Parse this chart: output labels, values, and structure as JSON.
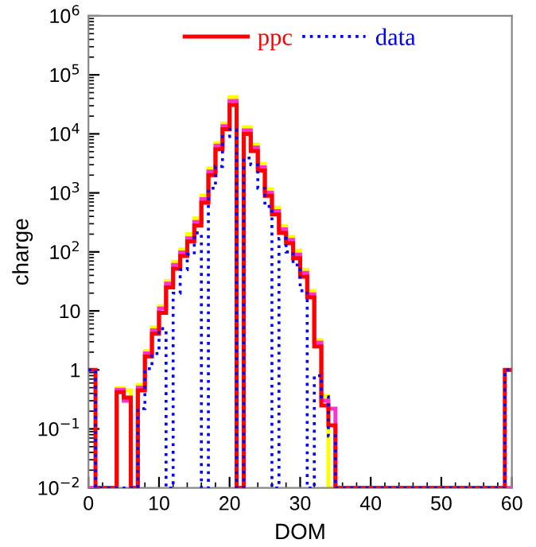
{
  "chart_data": {
    "type": "histogram",
    "xlabel": "DOM",
    "ylabel": "charge",
    "log": "y",
    "grid": false,
    "legend": "top",
    "bins": [
      0,
      1,
      2,
      3,
      4,
      5,
      6,
      7,
      8,
      9,
      10,
      11,
      12,
      13,
      14,
      15,
      16,
      17,
      18,
      19,
      20,
      21,
      22,
      23,
      24,
      25,
      26,
      27,
      28,
      29,
      30,
      31,
      32,
      33,
      34,
      35,
      36,
      37,
      38,
      39,
      40,
      41,
      42,
      43,
      44,
      45,
      46,
      47,
      48,
      49,
      50,
      51,
      52,
      53,
      54,
      55,
      56,
      57,
      58,
      59,
      60
    ],
    "xlim": [
      0,
      60
    ],
    "xticks": [
      0,
      10,
      20,
      30,
      40,
      50,
      60
    ],
    "ylim": [
      0.01,
      1000000
    ],
    "yticks": [
      {
        "value": 0.01,
        "label": "10$^{−2}$"
      },
      {
        "value": 0.1,
        "label": "10$^{−1}$"
      },
      1,
      10,
      {
        "value": 100,
        "label": "10$^{2}$"
      },
      {
        "value": 1000,
        "label": "10$^{3}$"
      },
      {
        "value": 10000,
        "label": "10$^{4}$"
      },
      {
        "value": 100000,
        "label": "10$^{5}$"
      },
      {
        "value": 1000000,
        "label": "10$^{6}$"
      }
    ],
    "series": [
      {
        "color": "#ffff00",
        "line_style": "solid",
        "values": [
          null,
          null,
          null,
          null,
          0.49,
          0.45,
          null,
          0.55,
          2.1,
          5.2,
          12,
          32,
          68,
          110,
          200,
          370,
          900,
          2600,
          7000,
          15000,
          42000,
          null,
          13000,
          6600,
          3100,
          1150,
          560,
          270,
          180,
          105,
          50,
          22,
          3.2,
          0.36,
          null,
          null,
          null,
          null,
          null,
          null,
          null,
          null,
          null,
          null,
          null,
          null,
          null,
          null,
          null,
          null,
          null,
          null,
          null,
          null,
          null,
          null,
          null,
          null,
          null,
          null
        ]
      },
      {
        "color": "#ff33cc",
        "line_style": "solid",
        "values": [
          null,
          null,
          null,
          null,
          0.46,
          0.3,
          null,
          0.5,
          1.9,
          4.7,
          11,
          29,
          60,
          98,
          170,
          320,
          780,
          2300,
          6300,
          13500,
          36000,
          null,
          11500,
          5900,
          2700,
          1000,
          490,
          240,
          160,
          90,
          44,
          19,
          2.9,
          0.3,
          0.22,
          null,
          null,
          null,
          null,
          null,
          null,
          null,
          null,
          null,
          null,
          null,
          null,
          null,
          null,
          null,
          null,
          null,
          null,
          null,
          null,
          null,
          null,
          null,
          null,
          null
        ]
      },
      {
        "name": "ppc",
        "color": "#ff0000",
        "line_style": "solid",
        "values": [
          1,
          null,
          null,
          null,
          0.42,
          0.34,
          null,
          0.45,
          1.7,
          4.1,
          9.3,
          25,
          52,
          85,
          150,
          280,
          680,
          2000,
          5500,
          12000,
          31000,
          null,
          10000,
          5100,
          2400,
          890,
          430,
          210,
          140,
          78,
          38,
          17,
          2.5,
          0.25,
          0.115,
          null,
          null,
          null,
          null,
          null,
          null,
          null,
          null,
          null,
          null,
          null,
          null,
          null,
          null,
          null,
          null,
          null,
          null,
          null,
          null,
          null,
          null,
          null,
          null,
          1
        ]
      },
      {
        "name": "data",
        "color": "#0000ff",
        "line_style": "dotted",
        "values": [
          1,
          null,
          null,
          null,
          null,
          null,
          null,
          0.22,
          1.05,
          1.9,
          5,
          null,
          20,
          50,
          91,
          210,
          null,
          1200,
          2800,
          9000,
          12000,
          null,
          3900,
          3000,
          1200,
          590,
          null,
          170,
          100,
          60,
          22,
          null,
          0.8,
          0.35,
          0.076,
          null,
          null,
          null,
          null,
          null,
          null,
          null,
          null,
          null,
          null,
          null,
          null,
          null,
          null,
          null,
          null,
          null,
          null,
          null,
          null,
          null,
          null,
          null,
          null,
          1
        ]
      }
    ]
  }
}
